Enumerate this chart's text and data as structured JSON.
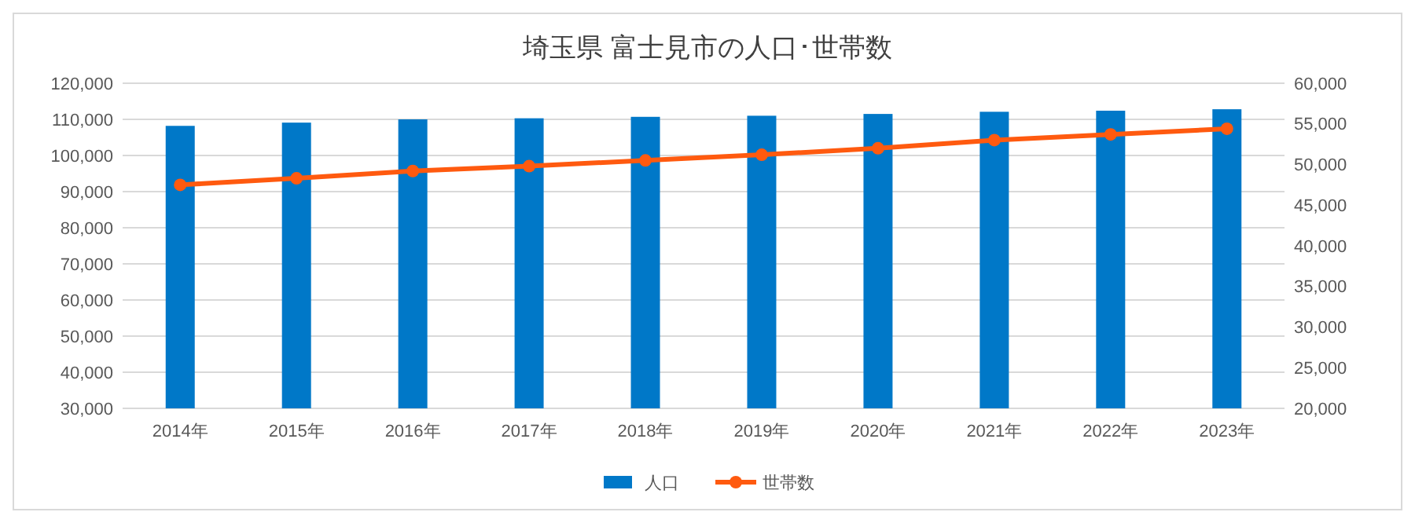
{
  "chart_data": {
    "type": "bar",
    "title": "埼玉県 富士見市の人口･世帯数",
    "categories": [
      "2014年",
      "2015年",
      "2016年",
      "2017年",
      "2018年",
      "2019年",
      "2020年",
      "2021年",
      "2022年",
      "2023年"
    ],
    "series": [
      {
        "name": "人口",
        "color": "#0078c8",
        "values": [
          108200,
          109100,
          110000,
          110300,
          110700,
          111000,
          111500,
          112100,
          112400,
          112800
        ]
      },
      {
        "name": "世帯数",
        "type": "line",
        "axis": "y2",
        "color": "#ff5a0f",
        "values": [
          47500,
          48300,
          49200,
          49800,
          50500,
          51200,
          52000,
          53000,
          53700,
          54400
        ]
      }
    ],
    "ylim": [
      30000,
      120000
    ],
    "yticks": [
      {
        "value": 30000,
        "label": "30,000"
      },
      {
        "value": 40000,
        "label": "40,000"
      },
      {
        "value": 50000,
        "label": "50,000"
      },
      {
        "value": 60000,
        "label": "60,000"
      },
      {
        "value": 70000,
        "label": "70,000"
      },
      {
        "value": 80000,
        "label": "80,000"
      },
      {
        "value": 90000,
        "label": "90,000"
      },
      {
        "value": 100000,
        "label": "100,000"
      },
      {
        "value": 110000,
        "label": "110,000"
      },
      {
        "value": 120000,
        "label": "120,000"
      }
    ],
    "y2lim": [
      20000,
      60000
    ],
    "y2ticks": [
      {
        "value": 20000,
        "label": "20,000"
      },
      {
        "value": 25000,
        "label": "25,000"
      },
      {
        "value": 30000,
        "label": "30,000"
      },
      {
        "value": 35000,
        "label": "35,000"
      },
      {
        "value": 40000,
        "label": "40,000"
      },
      {
        "value": 45000,
        "label": "45,000"
      },
      {
        "value": 50000,
        "label": "50,000"
      },
      {
        "value": 55000,
        "label": "55,000"
      },
      {
        "value": 60000,
        "label": "60,000"
      }
    ],
    "grid": "y",
    "legend": "bottom",
    "marker": "circle",
    "line_style": "solid"
  }
}
